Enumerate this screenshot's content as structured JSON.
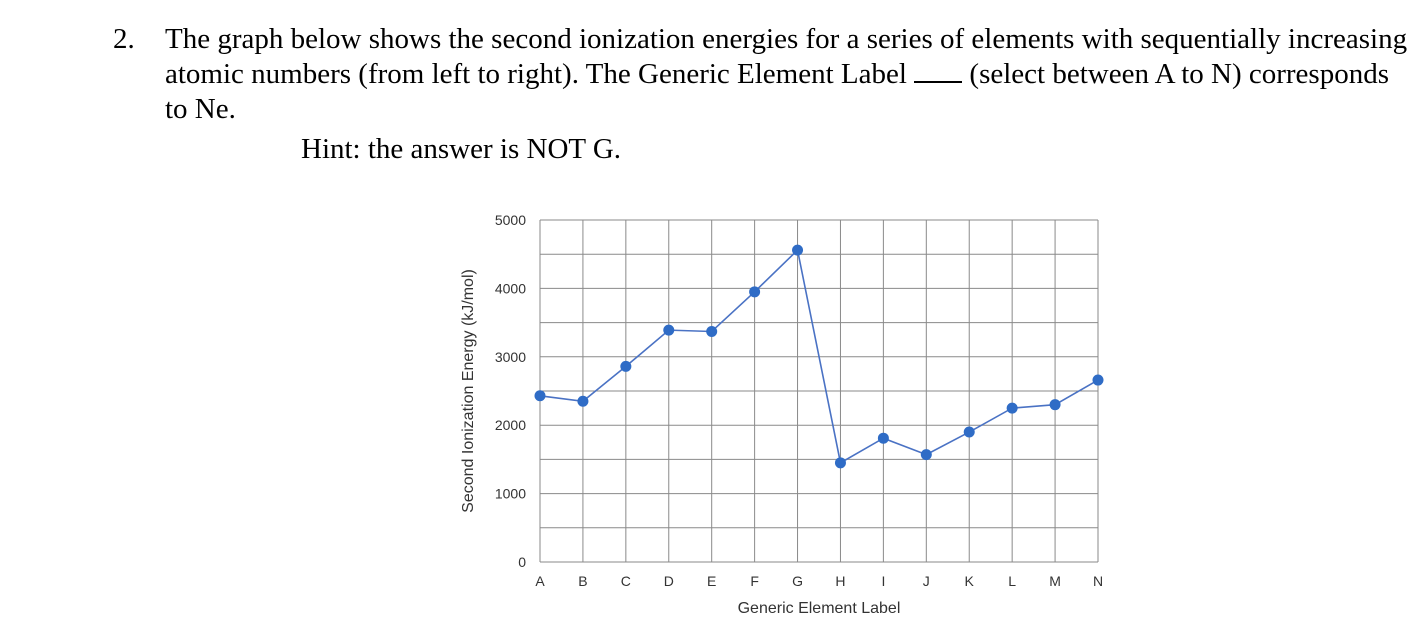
{
  "question": {
    "number": "2.",
    "text_before_blank": "The graph below shows the second ionization energies for a series of elements with sequentially increasing atomic numbers (from left to right). The Generic Element Label",
    "text_after_blank": " (select between A to N) corresponds to Ne.",
    "hint": "Hint: the answer is NOT G."
  },
  "chart_data": {
    "type": "line",
    "categories": [
      "A",
      "B",
      "C",
      "D",
      "E",
      "F",
      "G",
      "H",
      "I",
      "J",
      "K",
      "L",
      "M",
      "N"
    ],
    "values": [
      2430,
      2350,
      2860,
      3390,
      3370,
      3950,
      4560,
      1450,
      1810,
      1570,
      1900,
      2250,
      2300,
      2660
    ],
    "xlabel": "Generic Element Label",
    "ylabel": "Second Ionization Energy (kJ/mol)",
    "ylim": [
      0,
      5000
    ],
    "yticks": [
      0,
      1000,
      2000,
      3000,
      4000,
      5000
    ],
    "grid": true,
    "line_color": "#4a72c4",
    "marker_color": "#2f6cc6"
  }
}
